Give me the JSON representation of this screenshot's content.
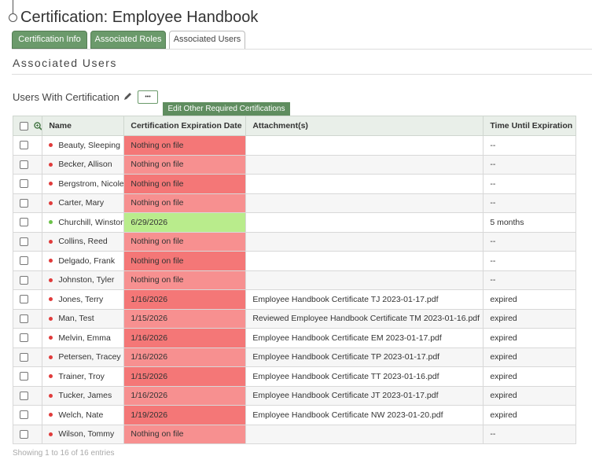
{
  "header": {
    "title": "Certification: Employee Handbook"
  },
  "tabs": [
    "Certification Info",
    "Associated Roles",
    "Associated Users"
  ],
  "section_title": "Associated Users",
  "subsection_title": "Users With Certification",
  "more_button": "•••",
  "tooltip": "Edit Other Required Certifications",
  "table": {
    "columns": [
      "Name",
      "Certification Expiration Date",
      "Attachment(s)",
      "Time Until Expiration"
    ],
    "rows": [
      {
        "name": "Beauty, Sleeping",
        "date": "Nothing on file",
        "attachment": null,
        "time": "--",
        "dot_color": "#e03b3b",
        "date_color": "#f47777"
      },
      {
        "name": "Becker, Allison",
        "date": "Nothing on file",
        "attachment": null,
        "time": "--",
        "dot_color": "#e03b3b",
        "date_color": "#f79090"
      },
      {
        "name": "Bergstrom, Nicole",
        "date": "Nothing on file",
        "attachment": null,
        "time": "--",
        "dot_color": "#e03b3b",
        "date_color": "#f47777"
      },
      {
        "name": "Carter, Mary",
        "date": "Nothing on file",
        "attachment": null,
        "time": "--",
        "dot_color": "#e03b3b",
        "date_color": "#f79090"
      },
      {
        "name": "Churchill, Winston",
        "date": "6/29/2026",
        "attachment": null,
        "time": "5 months",
        "dot_color": "#6cc24a",
        "date_color": "#b9ec8c"
      },
      {
        "name": "Collins, Reed",
        "date": "Nothing on file",
        "attachment": null,
        "time": "--",
        "dot_color": "#e03b3b",
        "date_color": "#f79090"
      },
      {
        "name": "Delgado, Frank",
        "date": "Nothing on file",
        "attachment": null,
        "time": "--",
        "dot_color": "#e03b3b",
        "date_color": "#f47777"
      },
      {
        "name": "Johnston, Tyler",
        "date": "Nothing on file",
        "attachment": null,
        "time": "--",
        "dot_color": "#e03b3b",
        "date_color": "#f79090"
      },
      {
        "name": "Jones, Terry",
        "date": "1/16/2026",
        "attachment": "Employee Handbook Certificate TJ 2023-01-17.pdf",
        "time": "expired",
        "dot_color": "#e03b3b",
        "date_color": "#f47777"
      },
      {
        "name": "Man, Test",
        "date": "1/15/2026",
        "attachment": "Reviewed Employee Handbook Certificate TM 2023-01-16.pdf",
        "time": "expired",
        "dot_color": "#e03b3b",
        "date_color": "#f79090"
      },
      {
        "name": "Melvin, Emma",
        "date": "1/16/2026",
        "attachment": "Employee Handbook Certificate EM 2023-01-17.pdf",
        "time": "expired",
        "dot_color": "#e03b3b",
        "date_color": "#f47777"
      },
      {
        "name": "Petersen, Tracey",
        "date": "1/16/2026",
        "attachment": "Employee Handbook Certificate TP 2023-01-17.pdf",
        "time": "expired",
        "dot_color": "#e03b3b",
        "date_color": "#f79090"
      },
      {
        "name": "Trainer, Troy",
        "date": "1/15/2026",
        "attachment": "Employee Handbook Certificate TT 2023-01-16.pdf",
        "time": "expired",
        "dot_color": "#e03b3b",
        "date_color": "#f47777"
      },
      {
        "name": "Tucker, James",
        "date": "1/16/2026",
        "attachment": "Employee Handbook Certificate JT 2023-01-17.pdf",
        "time": "expired",
        "dot_color": "#e03b3b",
        "date_color": "#f79090"
      },
      {
        "name": "Welch, Nate",
        "date": "1/19/2026",
        "attachment": "Employee Handbook Certificate NW 2023-01-20.pdf",
        "time": "expired",
        "dot_color": "#e03b3b",
        "date_color": "#f47777"
      },
      {
        "name": "Wilson, Tommy",
        "date": "Nothing on file",
        "attachment": null,
        "time": "--",
        "dot_color": "#e03b3b",
        "date_color": "#f79090"
      }
    ]
  },
  "footer": "Showing 1 to 16 of 16 entries"
}
